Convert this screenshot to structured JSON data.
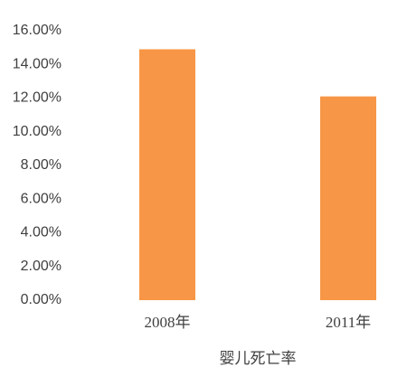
{
  "chart_data": {
    "type": "bar",
    "x_label": "婴儿死亡率",
    "categories": [
      "2008年",
      "2011年"
    ],
    "values": [
      14.9,
      12.1
    ],
    "color": "#f79646",
    "ylim": [
      0,
      16
    ],
    "yticks": [
      {
        "value": 0,
        "label": "0.00%"
      },
      {
        "value": 2,
        "label": "2.00%"
      },
      {
        "value": 4,
        "label": "4.00%"
      },
      {
        "value": 6,
        "label": "6.00%"
      },
      {
        "value": 8,
        "label": "8.00%"
      },
      {
        "value": 10,
        "label": "10.00%"
      },
      {
        "value": 12,
        "label": "12.00%"
      },
      {
        "value": 14,
        "label": "14.00%"
      },
      {
        "value": 16,
        "label": "16.00%"
      }
    ],
    "grid": false
  }
}
